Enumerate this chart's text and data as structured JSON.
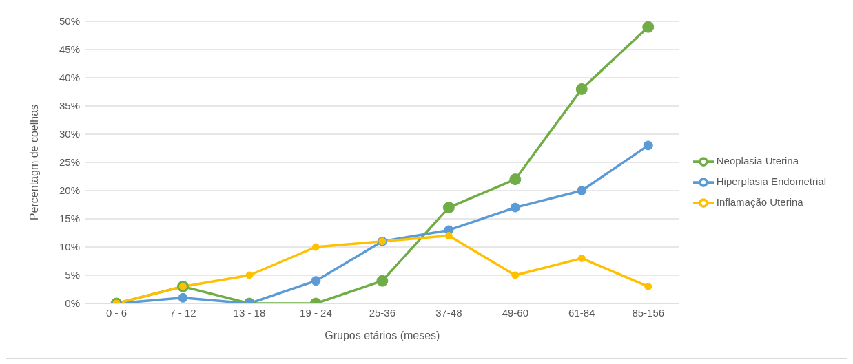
{
  "chart_data": {
    "type": "line",
    "xlabel": "Grupos etários (meses)",
    "ylabel": "Percentagm de coelhas",
    "categories": [
      "0 - 6",
      "7 - 12",
      "13 - 18",
      "19 - 24",
      "25-36",
      "37-48",
      "49-60",
      "61-84",
      "85-156"
    ],
    "series": [
      {
        "name": "Neoplasia Uterina",
        "color": "#70ad47",
        "values": [
          0,
          3,
          0,
          0,
          4,
          17,
          22,
          38,
          49
        ]
      },
      {
        "name": "Hiperplasia Endometrial",
        "color": "#5b9bd5",
        "values": [
          0,
          1,
          0,
          4,
          11,
          13,
          17,
          20,
          28
        ]
      },
      {
        "name": "Inflamação Uterina",
        "color": "#ffc000",
        "values": [
          0,
          3,
          5,
          10,
          11,
          12,
          5,
          8,
          3
        ]
      }
    ],
    "ylim": [
      0,
      50
    ],
    "yticks": [
      {
        "value": 0,
        "label": "0%"
      },
      {
        "value": 5,
        "label": "5%"
      },
      {
        "value": 10,
        "label": "10%"
      },
      {
        "value": 15,
        "label": "15%"
      },
      {
        "value": 20,
        "label": "20%"
      },
      {
        "value": 25,
        "label": "25%"
      },
      {
        "value": 30,
        "label": "30%"
      },
      {
        "value": 35,
        "label": "35%"
      },
      {
        "value": 40,
        "label": "40%"
      },
      {
        "value": 45,
        "label": "45%"
      },
      {
        "value": 50,
        "label": "50%"
      }
    ],
    "grid": "y",
    "legend": "right",
    "marker": "circle",
    "line_style": "solid"
  }
}
